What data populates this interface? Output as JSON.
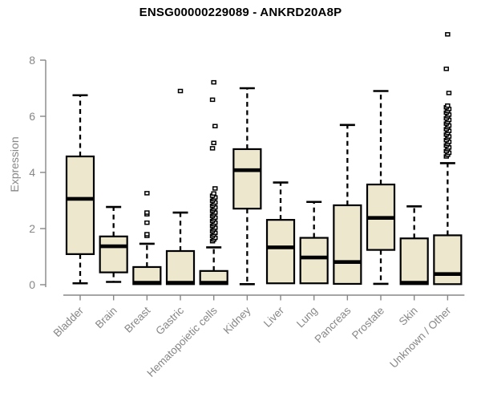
{
  "title": "ENSG00000229089 - ANKRD20A8P",
  "colors": {
    "background": "#ffffff",
    "title": "#000000",
    "axis": "#878787",
    "box_fill": "#EDE8CD",
    "box_stroke": "#000000",
    "median": "#000000",
    "outlier_fill": "#ffffff"
  },
  "chart_data": {
    "type": "boxplot",
    "title": "ENSG00000229089 - ANKRD20A8P",
    "xlabel": "",
    "ylabel": "Expression",
    "ylim": [
      0,
      9.2
    ],
    "yticks": [
      0,
      2,
      4,
      6,
      8
    ],
    "grid": false,
    "categories": [
      "Bladder",
      "Brain",
      "Breast",
      "Gastric",
      "Hematopoietic cells",
      "Kidney",
      "Liver",
      "Lung",
      "Pancreas",
      "Prostate",
      "Skin",
      "Unknown / Other"
    ],
    "boxes": [
      {
        "label": "Bladder",
        "low": 0.05,
        "q1": 1.09,
        "median": 3.06,
        "q3": 4.57,
        "high": 6.75,
        "outliers": []
      },
      {
        "label": "Brain",
        "low": 0.1,
        "q1": 0.44,
        "median": 1.37,
        "q3": 1.72,
        "high": 2.77,
        "outliers": []
      },
      {
        "label": "Breast",
        "low": null,
        "q1": 0.02,
        "median": 0.07,
        "q3": 0.63,
        "high": 1.46,
        "outliers": [
          1.74,
          1.8,
          2.21,
          2.51,
          2.57,
          3.26
        ]
      },
      {
        "label": "Gastric",
        "low": null,
        "q1": 0.02,
        "median": 0.07,
        "q3": 1.2,
        "high": 2.57,
        "outliers": [
          6.9
        ]
      },
      {
        "label": "Hematopoietic cells",
        "low": null,
        "q1": 0.02,
        "median": 0.07,
        "q3": 0.49,
        "high": 1.33,
        "outliers": [
          1.55,
          1.61,
          1.67,
          1.73,
          1.79,
          1.85,
          1.91,
          1.97,
          2.03,
          2.09,
          2.15,
          2.21,
          2.27,
          2.33,
          2.39,
          2.45,
          2.51,
          2.57,
          2.63,
          2.69,
          2.75,
          2.81,
          2.87,
          2.93,
          2.99,
          3.05,
          3.11,
          3.17,
          3.25,
          3.43,
          4.86,
          5.05,
          5.65,
          6.59,
          7.21
        ]
      },
      {
        "label": "Kidney",
        "low": 0.02,
        "q1": 2.71,
        "median": 4.08,
        "q3": 4.83,
        "high": 7.0,
        "outliers": []
      },
      {
        "label": "Liver",
        "low": null,
        "q1": 0.05,
        "median": 1.33,
        "q3": 2.31,
        "high": 3.64,
        "outliers": []
      },
      {
        "label": "Lung",
        "low": null,
        "q1": 0.05,
        "median": 0.97,
        "q3": 1.67,
        "high": 2.95,
        "outliers": []
      },
      {
        "label": "Pancreas",
        "low": null,
        "q1": 0.03,
        "median": 0.81,
        "q3": 2.83,
        "high": 5.69,
        "outliers": []
      },
      {
        "label": "Prostate",
        "low": 0.03,
        "q1": 1.24,
        "median": 2.38,
        "q3": 3.57,
        "high": 6.9,
        "outliers": []
      },
      {
        "label": "Skin",
        "low": null,
        "q1": 0.02,
        "median": 0.07,
        "q3": 1.65,
        "high": 2.79,
        "outliers": []
      },
      {
        "label": "Unknown / Other",
        "low": null,
        "q1": 0.02,
        "median": 0.38,
        "q3": 1.76,
        "high": 4.33,
        "outliers": [
          4.57,
          4.63,
          4.7,
          4.76,
          4.83,
          4.89,
          4.96,
          5.02,
          5.09,
          5.15,
          5.22,
          5.28,
          5.35,
          5.41,
          5.48,
          5.54,
          5.61,
          5.67,
          5.74,
          5.8,
          5.87,
          5.93,
          6.0,
          6.06,
          6.13,
          6.19,
          6.26,
          6.32,
          6.38,
          6.83,
          7.69,
          8.92
        ]
      }
    ]
  }
}
